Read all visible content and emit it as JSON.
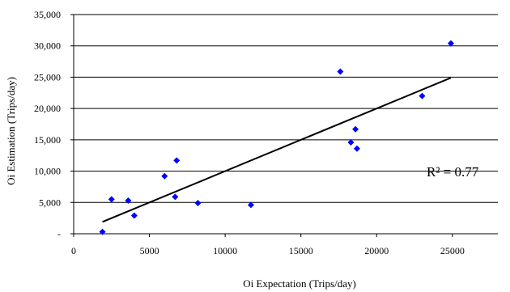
{
  "chart_data": {
    "type": "scatter",
    "xlabel": "Oi Expectation (Trips/day)",
    "ylabel": "Oi Estimation (Trips/day)",
    "xlim": [
      0,
      28000
    ],
    "ylim": [
      0,
      35000
    ],
    "x_ticks": [
      0,
      5000,
      10000,
      15000,
      20000,
      25000
    ],
    "x_tick_labels": [
      "0",
      "5000",
      "10000",
      "15000",
      "20000",
      "25000"
    ],
    "y_ticks": [
      0,
      5000,
      10000,
      15000,
      20000,
      25000,
      30000,
      35000
    ],
    "y_tick_labels": [
      "-",
      "5,000",
      "10,000",
      "15,000",
      "20,000",
      "25,000",
      "30,000",
      "35,000"
    ],
    "grid": "horizontal",
    "legend": "none",
    "marker": "diamond",
    "marker_color": "#0000ff",
    "series": [
      {
        "x": [
          1900,
          2500,
          3600,
          4000,
          6000,
          6700,
          6800,
          8200,
          11700,
          17600,
          18300,
          18600,
          18700,
          23000,
          24900
        ],
        "y": [
          300,
          5500,
          5300,
          2900,
          9200,
          5900,
          11700,
          4900,
          4600,
          25900,
          14600,
          16700,
          13600,
          22000,
          30400
        ]
      }
    ],
    "trendline": {
      "x": [
        1900,
        24900
      ],
      "y": [
        1900,
        24900
      ],
      "color": "#000000"
    },
    "annotation": {
      "r2_label": "R² = 0.77",
      "r2_value": 0.77
    }
  }
}
